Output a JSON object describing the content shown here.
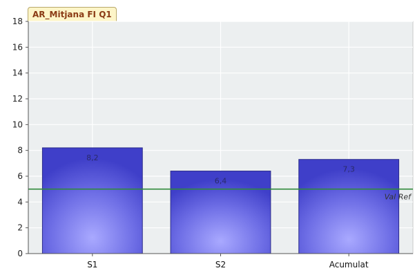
{
  "chart_data": {
    "type": "bar",
    "title": "AR_Mitjana FI Q1",
    "categories": [
      "S1",
      "S2",
      "Acumulat"
    ],
    "values": [
      8.2,
      6.4,
      7.3
    ],
    "data_labels": [
      "8,2",
      "6,4",
      "7,3"
    ],
    "ylim": [
      0,
      18
    ],
    "yticks": [
      0,
      2,
      4,
      6,
      8,
      10,
      12,
      14,
      16,
      18
    ],
    "grid": true,
    "reference_line": {
      "value": 5,
      "label": "Val Ref"
    }
  },
  "colors": {
    "bar_top": "#3f3fc9",
    "bar_mid": "#6f6fe6",
    "bar_light": "#a9a9ff",
    "plot_bg": "#eceff0",
    "grid": "#ffffff",
    "ref_line": "#2f8a3a",
    "axis": "#555555"
  }
}
